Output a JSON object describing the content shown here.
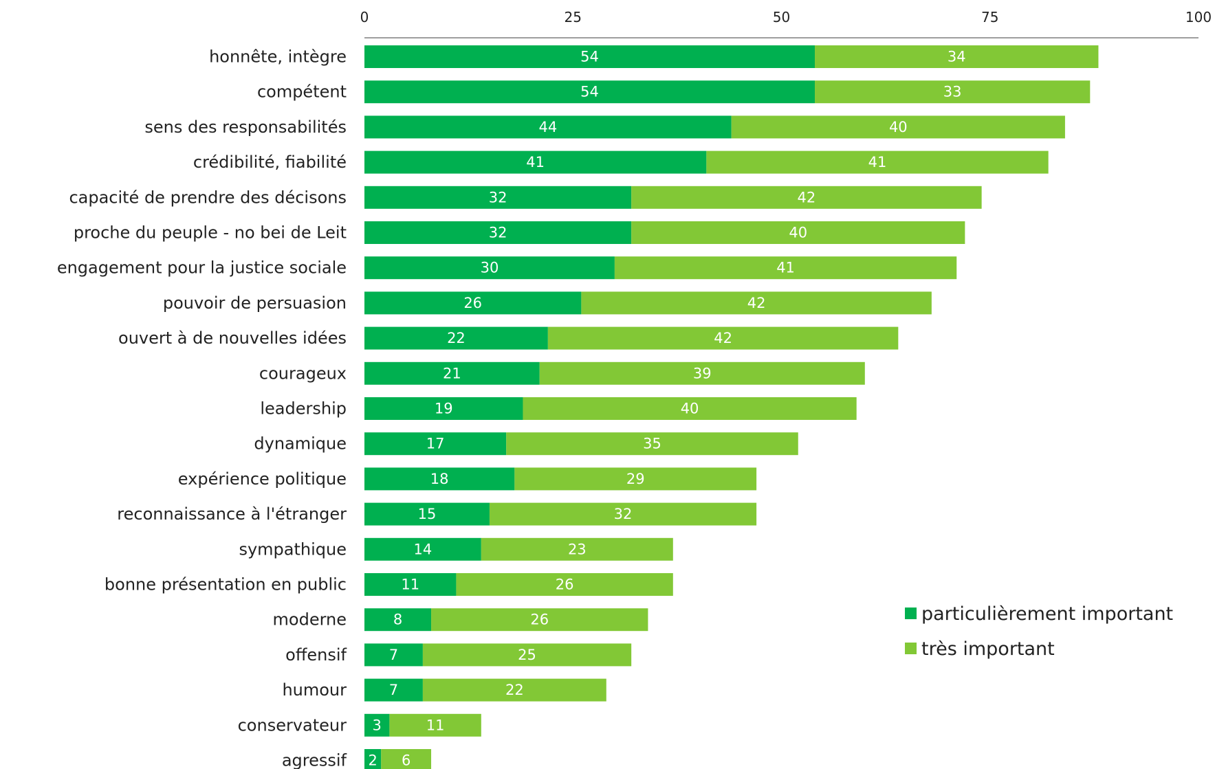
{
  "chart_data": {
    "type": "bar",
    "orientation": "horizontal",
    "stacked": true,
    "title": "",
    "xlabel": "",
    "ylabel": "",
    "xlim": [
      0,
      100
    ],
    "x_ticks": [
      "0",
      "25",
      "50",
      "75",
      "100"
    ],
    "grid": false,
    "legend_position": "bottom-right",
    "categories": [
      "honnête, intègre",
      "compétent",
      "sens des responsabilités",
      "crédibilité, fiabilité",
      "capacité de prendre des décisons",
      "proche du peuple - no bei de Leit",
      "engagement pour la justice sociale",
      "pouvoir de persuasion",
      "ouvert à de nouvelles idées",
      "courageux",
      "leadership",
      "dynamique",
      "expérience politique",
      "reconnaissance à l'étranger",
      "sympathique",
      "bonne présentation en public",
      "moderne",
      "offensif",
      "humour",
      "conservateur",
      "agressif"
    ],
    "series": [
      {
        "name": "particulièrement important",
        "color": "#00b050",
        "values": [
          54,
          54,
          44,
          41,
          32,
          32,
          30,
          26,
          22,
          21,
          19,
          17,
          18,
          15,
          14,
          11,
          8,
          7,
          7,
          3,
          2
        ]
      },
      {
        "name": "très important",
        "color": "#82c836",
        "values": [
          34,
          33,
          40,
          41,
          42,
          40,
          41,
          42,
          42,
          39,
          40,
          35,
          29,
          32,
          23,
          26,
          26,
          25,
          22,
          11,
          6
        ]
      }
    ]
  }
}
